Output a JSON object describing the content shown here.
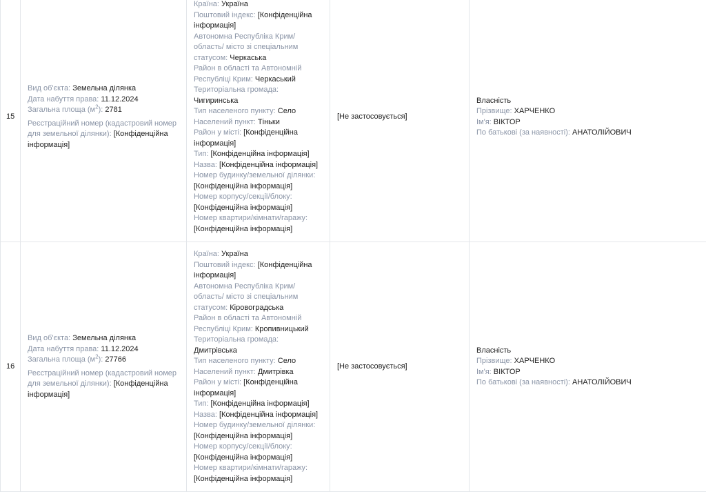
{
  "rows": [
    {
      "num": "15",
      "object": {
        "type_label": "Вид об'єкта:",
        "type": "Земельна ділянка",
        "date_label": "Дата набуття права:",
        "date": "11.12.2024",
        "area_label": "Загальна площа (м",
        "area_sup": "2",
        "area_close": "):",
        "area": "2781",
        "reg_label": "Реєстраційний номер (кадастровий номер для земельної ділянки):",
        "reg": "[Конфіденційна інформація]"
      },
      "address": {
        "country_label": "Країна:",
        "country": "Україна",
        "postal_label": "Поштовий індекс:",
        "postal": "[Конфіденційна інформація]",
        "region_label": "Автономна Республіка Крим/область/ місто зі спеціальним статусом:",
        "region": "Черкаська",
        "district_label": "Район в області та Автономній Республіці Крим:",
        "district": "Черкаський",
        "community_label": "Територіальна громада:",
        "community": "Чигиринська",
        "settlement_type_label": "Тип населеного пункту:",
        "settlement_type": "Село",
        "settlement_label": "Населений пункт:",
        "settlement": "Тіньки",
        "city_district_label": "Район у місті:",
        "city_district": "[Конфіденційна інформація]",
        "street_type_label": "Тип:",
        "street_type": "[Конфіденційна інформація]",
        "street_label": "Назва:",
        "street": "[Конфіденційна інформація]",
        "house_label": "Номер будинку/земельної ділянки:",
        "house": "[Конфіденційна інформація]",
        "building_label": "Номер корпусу/секції/блоку:",
        "building": "[Конфіденційна інформація]",
        "apt_label": "Номер квартири/кімнати/гаражу:",
        "apt": "[Конфіденційна інформація]"
      },
      "share": "[Не застосовується]",
      "owner": {
        "right": "Власність",
        "surname_label": "Прізвище:",
        "surname": "ХАРЧЕНКО",
        "name_label": "Ім'я:",
        "name": "ВІКТОР",
        "patronymic_label": "По батькові (за наявності):",
        "patronymic": "АНАТОЛІЙОВИЧ"
      }
    },
    {
      "num": "16",
      "object": {
        "type_label": "Вид об'єкта:",
        "type": "Земельна ділянка",
        "date_label": "Дата набуття права:",
        "date": "11.12.2024",
        "area_label": "Загальна площа (м",
        "area_sup": "2",
        "area_close": "):",
        "area": "27766",
        "reg_label": "Реєстраційний номер (кадастровий номер для земельної ділянки):",
        "reg": "[Конфіденційна інформація]"
      },
      "address": {
        "country_label": "Країна:",
        "country": "Україна",
        "postal_label": "Поштовий індекс:",
        "postal": "[Конфіденційна інформація]",
        "region_label": "Автономна Республіка Крим/область/ місто зі спеціальним статусом:",
        "region": "Кіровоградська",
        "district_label": "Район в області та Автономній Республіці Крим:",
        "district": "Кропивницький",
        "community_label": "Територіальна громада:",
        "community": "Дмитрівська",
        "settlement_type_label": "Тип населеного пункту:",
        "settlement_type": "Село",
        "settlement_label": "Населений пункт:",
        "settlement": "Дмитрівка",
        "city_district_label": "Район у місті:",
        "city_district": "[Конфіденційна інформація]",
        "street_type_label": "Тип:",
        "street_type": "[Конфіденційна інформація]",
        "street_label": "Назва:",
        "street": "[Конфіденційна інформація]",
        "house_label": "Номер будинку/земельної ділянки:",
        "house": "[Конфіденційна інформація]",
        "building_label": "Номер корпусу/секції/блоку:",
        "building": "[Конфіденційна інформація]",
        "apt_label": "Номер квартири/кімнати/гаражу:",
        "apt": "[Конфіденційна інформація]"
      },
      "share": "[Не застосовується]",
      "owner": {
        "right": "Власність",
        "surname_label": "Прізвище:",
        "surname": "ХАРЧЕНКО",
        "name_label": "Ім'я:",
        "name": "ВІКТОР",
        "patronymic_label": "По батькові (за наявності):",
        "patronymic": "АНАТОЛІЙОВИЧ"
      }
    }
  ]
}
